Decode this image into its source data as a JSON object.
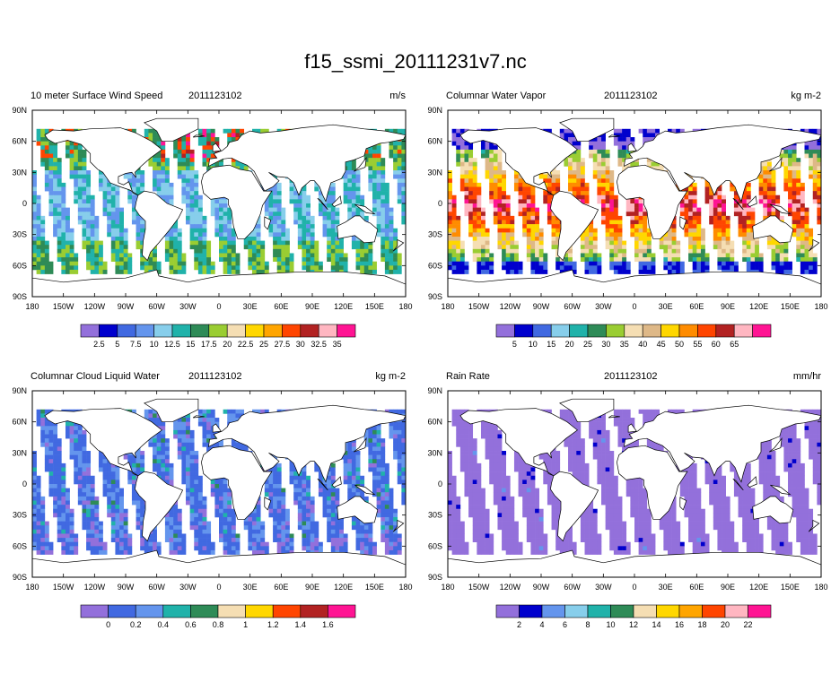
{
  "title": "f15_ssmi_20111231v7.nc",
  "colors": {
    "land": "#ffffff",
    "coast": "#000000",
    "missing": "#ffffff"
  },
  "axes": {
    "lon_labels": [
      "180",
      "150W",
      "120W",
      "90W",
      "60W",
      "30W",
      "0",
      "30E",
      "60E",
      "90E",
      "120E",
      "150E",
      "180"
    ],
    "lat_labels": [
      "90N",
      "60N",
      "30N",
      "0",
      "30S",
      "60S",
      "90S"
    ]
  },
  "chart_data": [
    {
      "type": "heatmap",
      "title": "10 meter Surface Wind Speed",
      "date": "2011123102",
      "units": "m/s",
      "xlim": [
        -180,
        180
      ],
      "ylim": [
        -90,
        90
      ],
      "colorbar": {
        "colors": [
          "#9370db",
          "#0000cd",
          "#4169e1",
          "#6495ed",
          "#87ceeb",
          "#20b2aa",
          "#2e8b57",
          "#9acd32",
          "#f5deb3",
          "#ffd700",
          "#ffa500",
          "#ff4500",
          "#b22222",
          "#ffb6c1",
          "#ff1493"
        ],
        "labels": [
          "2.5",
          "5",
          "7.5",
          "10",
          "12.5",
          "15",
          "17.5",
          "20",
          "22.5",
          "25",
          "27.5",
          "30",
          "32.5",
          "35"
        ]
      },
      "field": "wind"
    },
    {
      "type": "heatmap",
      "title": "Columnar Water Vapor",
      "date": "2011123102",
      "units": "kg m-2",
      "xlim": [
        -180,
        180
      ],
      "ylim": [
        -90,
        90
      ],
      "colorbar": {
        "colors": [
          "#9370db",
          "#0000cd",
          "#4169e1",
          "#87ceeb",
          "#20b2aa",
          "#2e8b57",
          "#9acd32",
          "#f5deb3",
          "#deb887",
          "#ffd700",
          "#ff8c00",
          "#ff4500",
          "#b22222",
          "#ffb6c1",
          "#ff1493"
        ],
        "labels": [
          "5",
          "10",
          "15",
          "20",
          "25",
          "30",
          "35",
          "40",
          "45",
          "50",
          "55",
          "60",
          "65"
        ]
      },
      "field": "vapor"
    },
    {
      "type": "heatmap",
      "title": "Columnar Cloud Liquid Water",
      "date": "2011123102",
      "units": "kg m-2",
      "xlim": [
        -180,
        180
      ],
      "ylim": [
        -90,
        90
      ],
      "colorbar": {
        "colors": [
          "#9370db",
          "#4169e1",
          "#6495ed",
          "#20b2aa",
          "#2e8b57",
          "#f5deb3",
          "#ffd700",
          "#ff4500",
          "#b22222",
          "#ff1493"
        ],
        "labels": [
          "0",
          "0.2",
          "0.4",
          "0.6",
          "0.8",
          "1",
          "1.2",
          "1.4",
          "1.6"
        ]
      },
      "field": "cloud"
    },
    {
      "type": "heatmap",
      "title": "Rain Rate",
      "date": "2011123102",
      "units": "mm/hr",
      "xlim": [
        -180,
        180
      ],
      "ylim": [
        -90,
        90
      ],
      "colorbar": {
        "colors": [
          "#9370db",
          "#0000cd",
          "#6495ed",
          "#87ceeb",
          "#20b2aa",
          "#2e8b57",
          "#f5deb3",
          "#ffd700",
          "#ffa500",
          "#ff4500",
          "#ffb6c1",
          "#ff1493"
        ],
        "labels": [
          "2",
          "4",
          "6",
          "8",
          "10",
          "12",
          "14",
          "16",
          "18",
          "20",
          "22"
        ]
      },
      "field": "rain"
    }
  ]
}
